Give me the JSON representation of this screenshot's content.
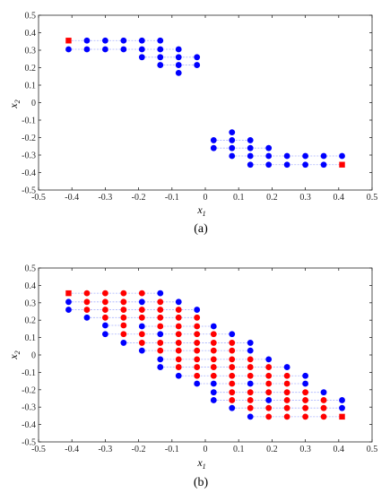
{
  "chart_data": [
    {
      "type": "scatter",
      "panel_label": "(a)",
      "xlabel": "x",
      "xlabel_sub": "1",
      "ylabel": "x",
      "ylabel_sub": "2",
      "xlim": [
        -0.5,
        0.5
      ],
      "ylim": [
        -0.5,
        0.5
      ],
      "xticks": [
        "-0.5",
        "-0.4",
        "-0.3",
        "-0.2",
        "-0.1",
        "0",
        "0.1",
        "0.2",
        "0.3",
        "0.4",
        "0.5"
      ],
      "yticks": [
        "-0.5",
        "-0.4",
        "-0.3",
        "-0.2",
        "-0.1",
        "0",
        "0.1",
        "0.2",
        "0.3",
        "0.4",
        "0.5"
      ],
      "grid": false,
      "colors": {
        "blue": "#0000ff",
        "red": "#ff0000",
        "connector": "#aab4ff"
      },
      "series": [
        {
          "color": "blue",
          "marker": "circle",
          "points": [
            [
              -0.41,
              0.305
            ],
            [
              -0.355,
              0.355
            ],
            [
              -0.355,
              0.305
            ],
            [
              -0.3,
              0.355
            ],
            [
              -0.3,
              0.305
            ],
            [
              -0.245,
              0.355
            ],
            [
              -0.245,
              0.305
            ],
            [
              -0.19,
              0.355
            ],
            [
              -0.19,
              0.305
            ],
            [
              -0.19,
              0.26
            ],
            [
              -0.135,
              0.355
            ],
            [
              -0.135,
              0.305
            ],
            [
              -0.135,
              0.26
            ],
            [
              -0.135,
              0.215
            ],
            [
              -0.08,
              0.305
            ],
            [
              -0.08,
              0.26
            ],
            [
              -0.08,
              0.215
            ],
            [
              -0.08,
              0.17
            ],
            [
              -0.025,
              0.26
            ],
            [
              -0.025,
              0.215
            ],
            [
              0.025,
              -0.215
            ],
            [
              0.025,
              -0.26
            ],
            [
              0.08,
              -0.17
            ],
            [
              0.08,
              -0.215
            ],
            [
              0.08,
              -0.26
            ],
            [
              0.08,
              -0.305
            ],
            [
              0.135,
              -0.215
            ],
            [
              0.135,
              -0.26
            ],
            [
              0.135,
              -0.305
            ],
            [
              0.135,
              -0.355
            ],
            [
              0.19,
              -0.26
            ],
            [
              0.19,
              -0.305
            ],
            [
              0.19,
              -0.355
            ],
            [
              0.245,
              -0.305
            ],
            [
              0.245,
              -0.355
            ],
            [
              0.3,
              -0.305
            ],
            [
              0.3,
              -0.355
            ],
            [
              0.355,
              -0.305
            ],
            [
              0.355,
              -0.355
            ],
            [
              0.41,
              -0.305
            ]
          ]
        },
        {
          "color": "red",
          "marker": "square",
          "points": [
            [
              -0.41,
              0.355
            ],
            [
              0.41,
              -0.355
            ]
          ]
        }
      ],
      "connector_rows": [
        [
          0.355,
          -0.41,
          -0.135
        ],
        [
          0.305,
          -0.41,
          -0.08
        ],
        [
          0.26,
          -0.19,
          -0.025
        ],
        [
          0.215,
          -0.135,
          -0.025
        ],
        [
          -0.215,
          0.025,
          0.135
        ],
        [
          -0.26,
          0.025,
          0.19
        ],
        [
          -0.305,
          0.08,
          0.41
        ],
        [
          -0.355,
          0.135,
          0.41
        ]
      ]
    },
    {
      "type": "scatter",
      "panel_label": "(b)",
      "xlabel": "x",
      "xlabel_sub": "1",
      "ylabel": "x",
      "ylabel_sub": "2",
      "xlim": [
        -0.5,
        0.5
      ],
      "ylim": [
        -0.5,
        0.5
      ],
      "xticks": [
        "-0.5",
        "-0.4",
        "-0.3",
        "-0.2",
        "-0.1",
        "0",
        "0.1",
        "0.2",
        "0.3",
        "0.4",
        "0.5"
      ],
      "yticks": [
        "-0.5",
        "-0.4",
        "-0.3",
        "-0.2",
        "-0.1",
        "0",
        "0.1",
        "0.2",
        "0.3",
        "0.4",
        "0.5"
      ],
      "grid": false,
      "colors": {
        "blue": "#0000ff",
        "red": "#ff0000",
        "connector": "#aab4ff"
      },
      "columns": [
        {
          "x": -0.41,
          "points": [
            [
              0.355,
              "r"
            ],
            [
              0.305,
              "b"
            ],
            [
              0.26,
              "b"
            ]
          ]
        },
        {
          "x": -0.355,
          "points": [
            [
              0.355,
              "r"
            ],
            [
              0.305,
              "r"
            ],
            [
              0.26,
              "r"
            ],
            [
              0.215,
              "b"
            ]
          ]
        },
        {
          "x": -0.3,
          "points": [
            [
              0.355,
              "r"
            ],
            [
              0.305,
              "r"
            ],
            [
              0.26,
              "r"
            ],
            [
              0.215,
              "r"
            ],
            [
              0.17,
              "b"
            ],
            [
              0.12,
              "b"
            ]
          ]
        },
        {
          "x": -0.245,
          "points": [
            [
              0.355,
              "r"
            ],
            [
              0.305,
              "r"
            ],
            [
              0.26,
              "r"
            ],
            [
              0.215,
              "r"
            ],
            [
              0.17,
              "r"
            ],
            [
              0.12,
              "r"
            ],
            [
              0.07,
              "b"
            ]
          ]
        },
        {
          "x": -0.19,
          "points": [
            [
              0.355,
              "r"
            ],
            [
              0.305,
              "b"
            ],
            [
              0.26,
              "r"
            ],
            [
              0.215,
              "r"
            ],
            [
              0.165,
              "b"
            ],
            [
              0.12,
              "r"
            ],
            [
              0.07,
              "r"
            ],
            [
              0.025,
              "b"
            ]
          ]
        },
        {
          "x": -0.135,
          "points": [
            [
              0.355,
              "b"
            ],
            [
              0.305,
              "r"
            ],
            [
              0.26,
              "r"
            ],
            [
              0.215,
              "r"
            ],
            [
              0.165,
              "r"
            ],
            [
              0.12,
              "b"
            ],
            [
              0.07,
              "r"
            ],
            [
              0.025,
              "r"
            ],
            [
              -0.025,
              "b"
            ],
            [
              -0.07,
              "b"
            ]
          ]
        },
        {
          "x": -0.08,
          "points": [
            [
              0.305,
              "b"
            ],
            [
              0.26,
              "r"
            ],
            [
              0.215,
              "r"
            ],
            [
              0.165,
              "r"
            ],
            [
              0.12,
              "r"
            ],
            [
              0.07,
              "r"
            ],
            [
              0.025,
              "r"
            ],
            [
              -0.025,
              "r"
            ],
            [
              -0.07,
              "r"
            ],
            [
              -0.12,
              "b"
            ]
          ]
        },
        {
          "x": -0.025,
          "points": [
            [
              0.26,
              "b"
            ],
            [
              0.215,
              "r"
            ],
            [
              0.165,
              "r"
            ],
            [
              0.12,
              "r"
            ],
            [
              0.07,
              "r"
            ],
            [
              0.025,
              "r"
            ],
            [
              -0.025,
              "r"
            ],
            [
              -0.07,
              "r"
            ],
            [
              -0.12,
              "r"
            ],
            [
              -0.165,
              "b"
            ]
          ]
        },
        {
          "x": 0.025,
          "points": [
            [
              0.165,
              "b"
            ],
            [
              0.12,
              "r"
            ],
            [
              0.07,
              "r"
            ],
            [
              0.025,
              "r"
            ],
            [
              -0.025,
              "r"
            ],
            [
              -0.07,
              "r"
            ],
            [
              -0.12,
              "r"
            ],
            [
              -0.165,
              "b"
            ],
            [
              -0.215,
              "b"
            ],
            [
              -0.26,
              "b"
            ]
          ]
        },
        {
          "x": 0.08,
          "points": [
            [
              0.12,
              "b"
            ],
            [
              0.07,
              "r"
            ],
            [
              0.025,
              "r"
            ],
            [
              -0.025,
              "r"
            ],
            [
              -0.07,
              "r"
            ],
            [
              -0.12,
              "r"
            ],
            [
              -0.165,
              "r"
            ],
            [
              -0.215,
              "r"
            ],
            [
              -0.26,
              "r"
            ],
            [
              -0.305,
              "b"
            ]
          ]
        },
        {
          "x": 0.135,
          "points": [
            [
              0.07,
              "b"
            ],
            [
              0.025,
              "b"
            ],
            [
              -0.025,
              "r"
            ],
            [
              -0.07,
              "r"
            ],
            [
              -0.12,
              "r"
            ],
            [
              -0.165,
              "b"
            ],
            [
              -0.215,
              "r"
            ],
            [
              -0.26,
              "r"
            ],
            [
              -0.305,
              "r"
            ],
            [
              -0.355,
              "b"
            ]
          ]
        },
        {
          "x": 0.19,
          "points": [
            [
              -0.025,
              "b"
            ],
            [
              -0.07,
              "r"
            ],
            [
              -0.12,
              "r"
            ],
            [
              -0.165,
              "r"
            ],
            [
              -0.215,
              "r"
            ],
            [
              -0.26,
              "b"
            ],
            [
              -0.305,
              "r"
            ],
            [
              -0.355,
              "r"
            ]
          ]
        },
        {
          "x": 0.245,
          "points": [
            [
              -0.07,
              "b"
            ],
            [
              -0.12,
              "r"
            ],
            [
              -0.165,
              "r"
            ],
            [
              -0.215,
              "r"
            ],
            [
              -0.26,
              "r"
            ],
            [
              -0.305,
              "r"
            ],
            [
              -0.355,
              "r"
            ]
          ]
        },
        {
          "x": 0.3,
          "points": [
            [
              -0.12,
              "b"
            ],
            [
              -0.165,
              "b"
            ],
            [
              -0.215,
              "r"
            ],
            [
              -0.26,
              "r"
            ],
            [
              -0.305,
              "r"
            ],
            [
              -0.355,
              "r"
            ]
          ]
        },
        {
          "x": 0.355,
          "points": [
            [
              -0.215,
              "b"
            ],
            [
              -0.26,
              "r"
            ],
            [
              -0.305,
              "r"
            ],
            [
              -0.355,
              "r"
            ]
          ]
        },
        {
          "x": 0.41,
          "points": [
            [
              -0.26,
              "b"
            ],
            [
              -0.305,
              "b"
            ],
            [
              -0.355,
              "r"
            ]
          ]
        }
      ],
      "square_markers": [
        [
          -0.41,
          0.355
        ],
        [
          0.41,
          -0.355
        ]
      ]
    }
  ]
}
